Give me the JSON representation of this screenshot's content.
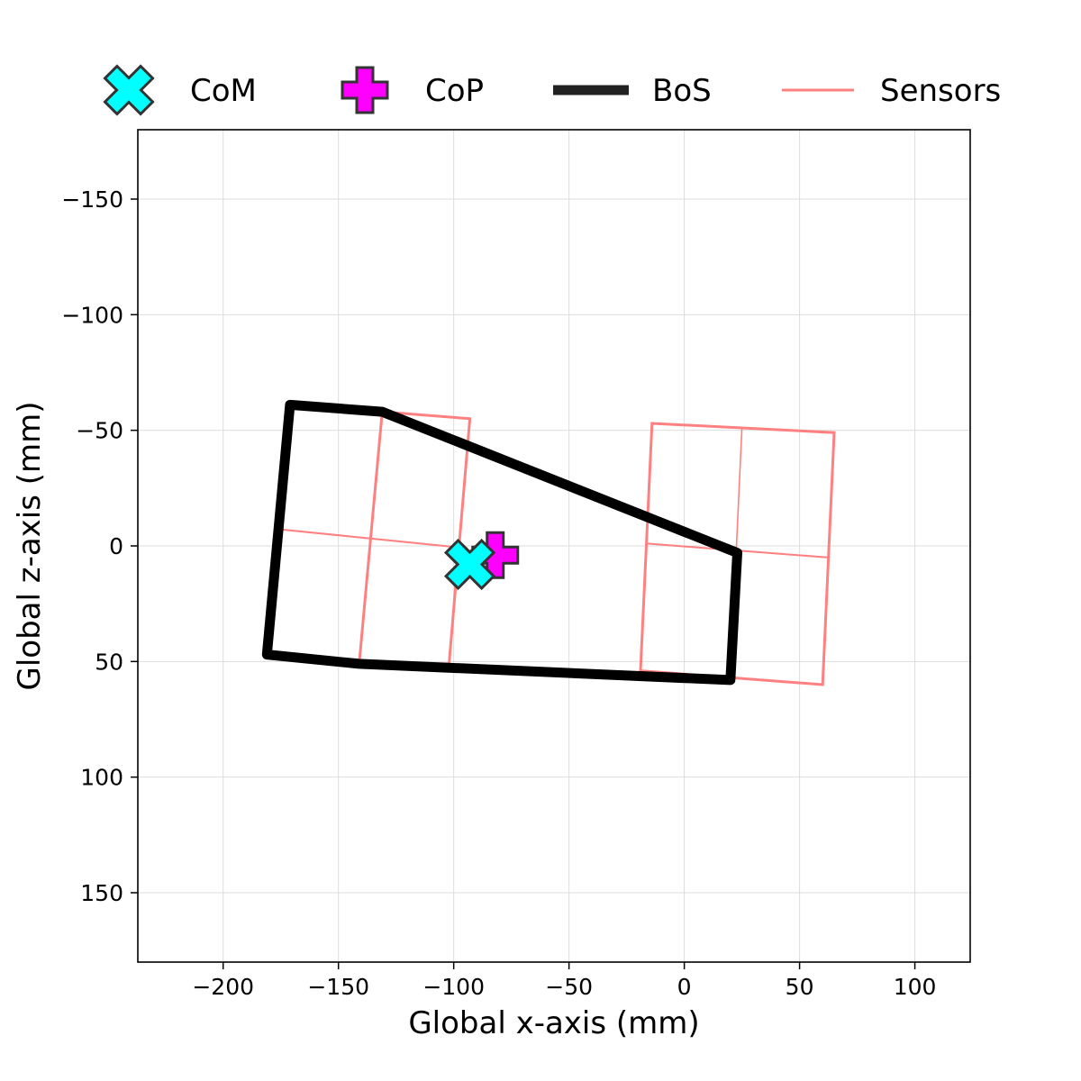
{
  "chart_data": {
    "type": "scatter",
    "xlabel": "Global x-axis (mm)",
    "ylabel": "Global z-axis (mm)",
    "xlim": [
      -237,
      124
    ],
    "ylim": [
      -180,
      180
    ],
    "y_inverted": true,
    "grid": true,
    "legend_placement": "top (above plot)",
    "x_ticks": [
      -200,
      -150,
      -100,
      -50,
      0,
      50,
      100
    ],
    "y_ticks": [
      -150,
      -100,
      -50,
      0,
      50,
      100,
      150
    ],
    "x_tick_labels": [
      "−200",
      "−150",
      "−100",
      "−50",
      "0",
      "50",
      "100"
    ],
    "y_tick_labels": [
      "−150",
      "−100",
      "−50",
      "0",
      "50",
      "100",
      "150"
    ],
    "colors": {
      "com": "#00ffff",
      "cop": "#ff00ff",
      "bos": "#000000",
      "sensors": "#ff8080",
      "marker_edge": "#333333",
      "grid": "#dddddd"
    },
    "legend": [
      {
        "label": "CoM",
        "marker": "x-marker"
      },
      {
        "label": "CoP",
        "marker": "plus-marker"
      },
      {
        "label": "BoS",
        "marker": "thick-line"
      },
      {
        "label": "Sensors",
        "marker": "thin-line"
      }
    ],
    "com": {
      "name": "CoM",
      "x": -93,
      "z": 8
    },
    "cop": {
      "name": "CoP",
      "x": -82,
      "z": 4
    },
    "bos": {
      "name": "BoS",
      "points": [
        [
          -171,
          -61
        ],
        [
          -131,
          -58
        ],
        [
          23,
          3
        ],
        [
          20,
          58
        ],
        [
          -141,
          51
        ],
        [
          -181,
          47
        ],
        [
          -171,
          -61
        ]
      ]
    },
    "sensors": {
      "name": "Sensors",
      "plates": [
        {
          "outline": [
            [
              -131,
              -58
            ],
            [
              -93,
              -55
            ],
            [
              -102,
              51
            ],
            [
              -141,
              51
            ]
          ],
          "crosshair": [
            [
              [
                -131,
                -58
              ],
              [
                -141,
                51
              ]
            ],
            [
              [
                -174,
                -7
              ],
              [
                -94,
                1
              ]
            ]
          ]
        },
        {
          "outline": [
            [
              -14,
              -53
            ],
            [
              65,
              -49
            ],
            [
              60,
              60
            ],
            [
              -19,
              54
            ]
          ],
          "crosshair": [
            [
              [
                -14,
                -53
              ],
              [
                -19,
                54
              ]
            ],
            [
              [
                -16,
                -1
              ],
              [
                62,
                5
              ]
            ]
          ]
        }
      ],
      "sub_crosshairs": [
        {
          "v": [
            [
              -131,
              -58
            ],
            [
              -141,
              51
            ]
          ],
          "h": [
            [
              -174,
              -7
            ],
            [
              -94,
              1
            ]
          ]
        },
        {
          "v": [
            [
              25,
              -51
            ],
            [
              20,
              57
            ]
          ],
          "h": [
            [
              -16,
              -1
            ],
            [
              62,
              5
            ]
          ]
        }
      ]
    }
  }
}
